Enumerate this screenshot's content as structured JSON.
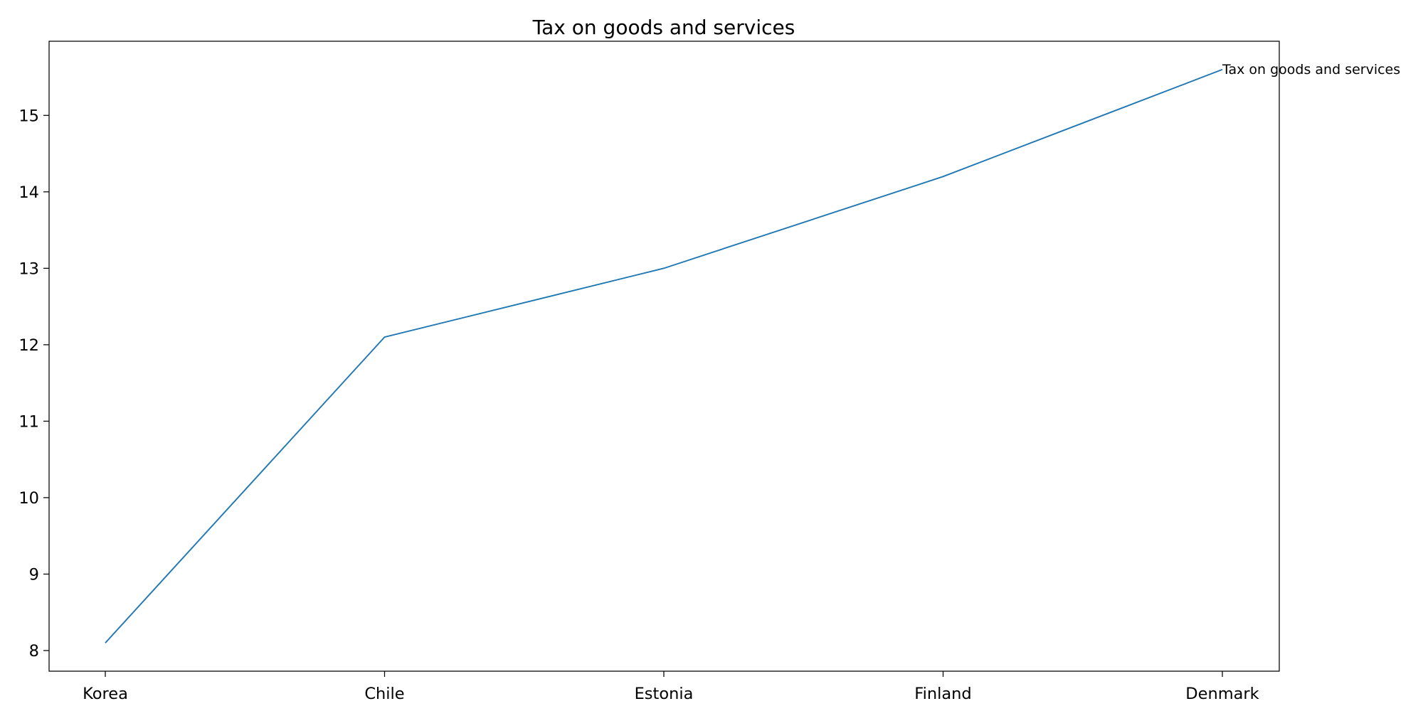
{
  "chart_data": {
    "type": "line",
    "title": "Tax on goods and services",
    "xlabel": "",
    "ylabel": "",
    "categories": [
      "Korea",
      "Chile",
      "Estonia",
      "Finland",
      "Denmark"
    ],
    "series": [
      {
        "name": "Tax on goods and services",
        "values": [
          8.1,
          12.1,
          13.0,
          14.2,
          15.6
        ],
        "color": "#1f77b4"
      }
    ],
    "ylim": [
      7.73,
      15.97
    ],
    "yticks": [
      8,
      9,
      10,
      11,
      12,
      13,
      14,
      15
    ],
    "grid": false,
    "legend": "none",
    "end_label": "Tax on goods and services"
  }
}
